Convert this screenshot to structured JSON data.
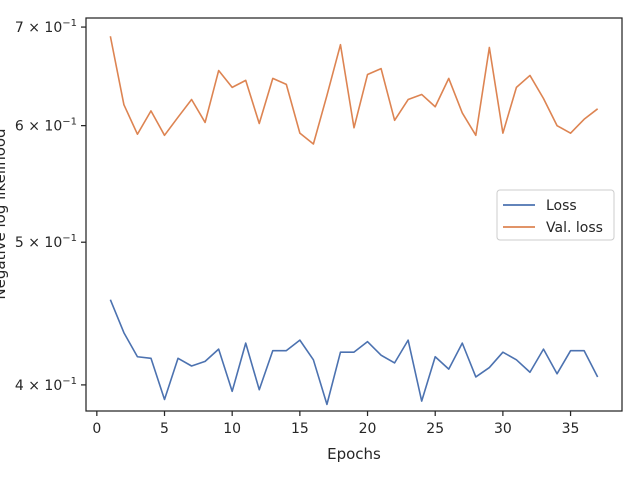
{
  "chart_data": {
    "type": "line",
    "xlabel": "Epochs",
    "ylabel": "Negative log likelihood",
    "yscale": "log",
    "xlim": [
      -0.8,
      38.8
    ],
    "ylim": [
      0.384,
      0.71
    ],
    "x_ticks": [
      0,
      5,
      10,
      15,
      20,
      25,
      30,
      35
    ],
    "y_ticks": [
      {
        "value": 0.4,
        "label_base": "4 × 10",
        "label_exp": "−1"
      },
      {
        "value": 0.5,
        "label_base": "5 × 10",
        "label_exp": "−1"
      },
      {
        "value": 0.6,
        "label_base": "6 × 10",
        "label_exp": "−1"
      },
      {
        "value": 0.7,
        "label_base": "7 × 10",
        "label_exp": "−1"
      }
    ],
    "grid": false,
    "legend_position": "center-right",
    "x": [
      1,
      2,
      3,
      4,
      5,
      6,
      7,
      8,
      9,
      10,
      11,
      12,
      13,
      14,
      15,
      16,
      17,
      18,
      19,
      20,
      21,
      22,
      23,
      24,
      25,
      26,
      27,
      28,
      29,
      30,
      31,
      32,
      33,
      34,
      35,
      36,
      37
    ],
    "series": [
      {
        "name": "Loss",
        "color": "#4c72b0",
        "values": [
          0.457,
          0.434,
          0.418,
          0.417,
          0.391,
          0.417,
          0.412,
          0.415,
          0.423,
          0.396,
          0.427,
          0.397,
          0.422,
          0.422,
          0.429,
          0.416,
          0.388,
          0.421,
          0.421,
          0.428,
          0.419,
          0.414,
          0.429,
          0.39,
          0.418,
          0.41,
          0.427,
          0.405,
          0.411,
          0.421,
          0.416,
          0.408,
          0.423,
          0.407,
          0.422,
          0.422,
          0.405
        ]
      },
      {
        "name": "Val. loss",
        "color": "#dd8452",
        "values": [
          0.69,
          0.62,
          0.592,
          0.614,
          0.591,
          0.608,
          0.625,
          0.603,
          0.654,
          0.637,
          0.644,
          0.602,
          0.646,
          0.64,
          0.593,
          0.583,
          0.629,
          0.681,
          0.598,
          0.65,
          0.656,
          0.605,
          0.625,
          0.63,
          0.618,
          0.646,
          0.612,
          0.591,
          0.678,
          0.593,
          0.637,
          0.649,
          0.626,
          0.6,
          0.593,
          0.606,
          0.616
        ]
      }
    ]
  }
}
